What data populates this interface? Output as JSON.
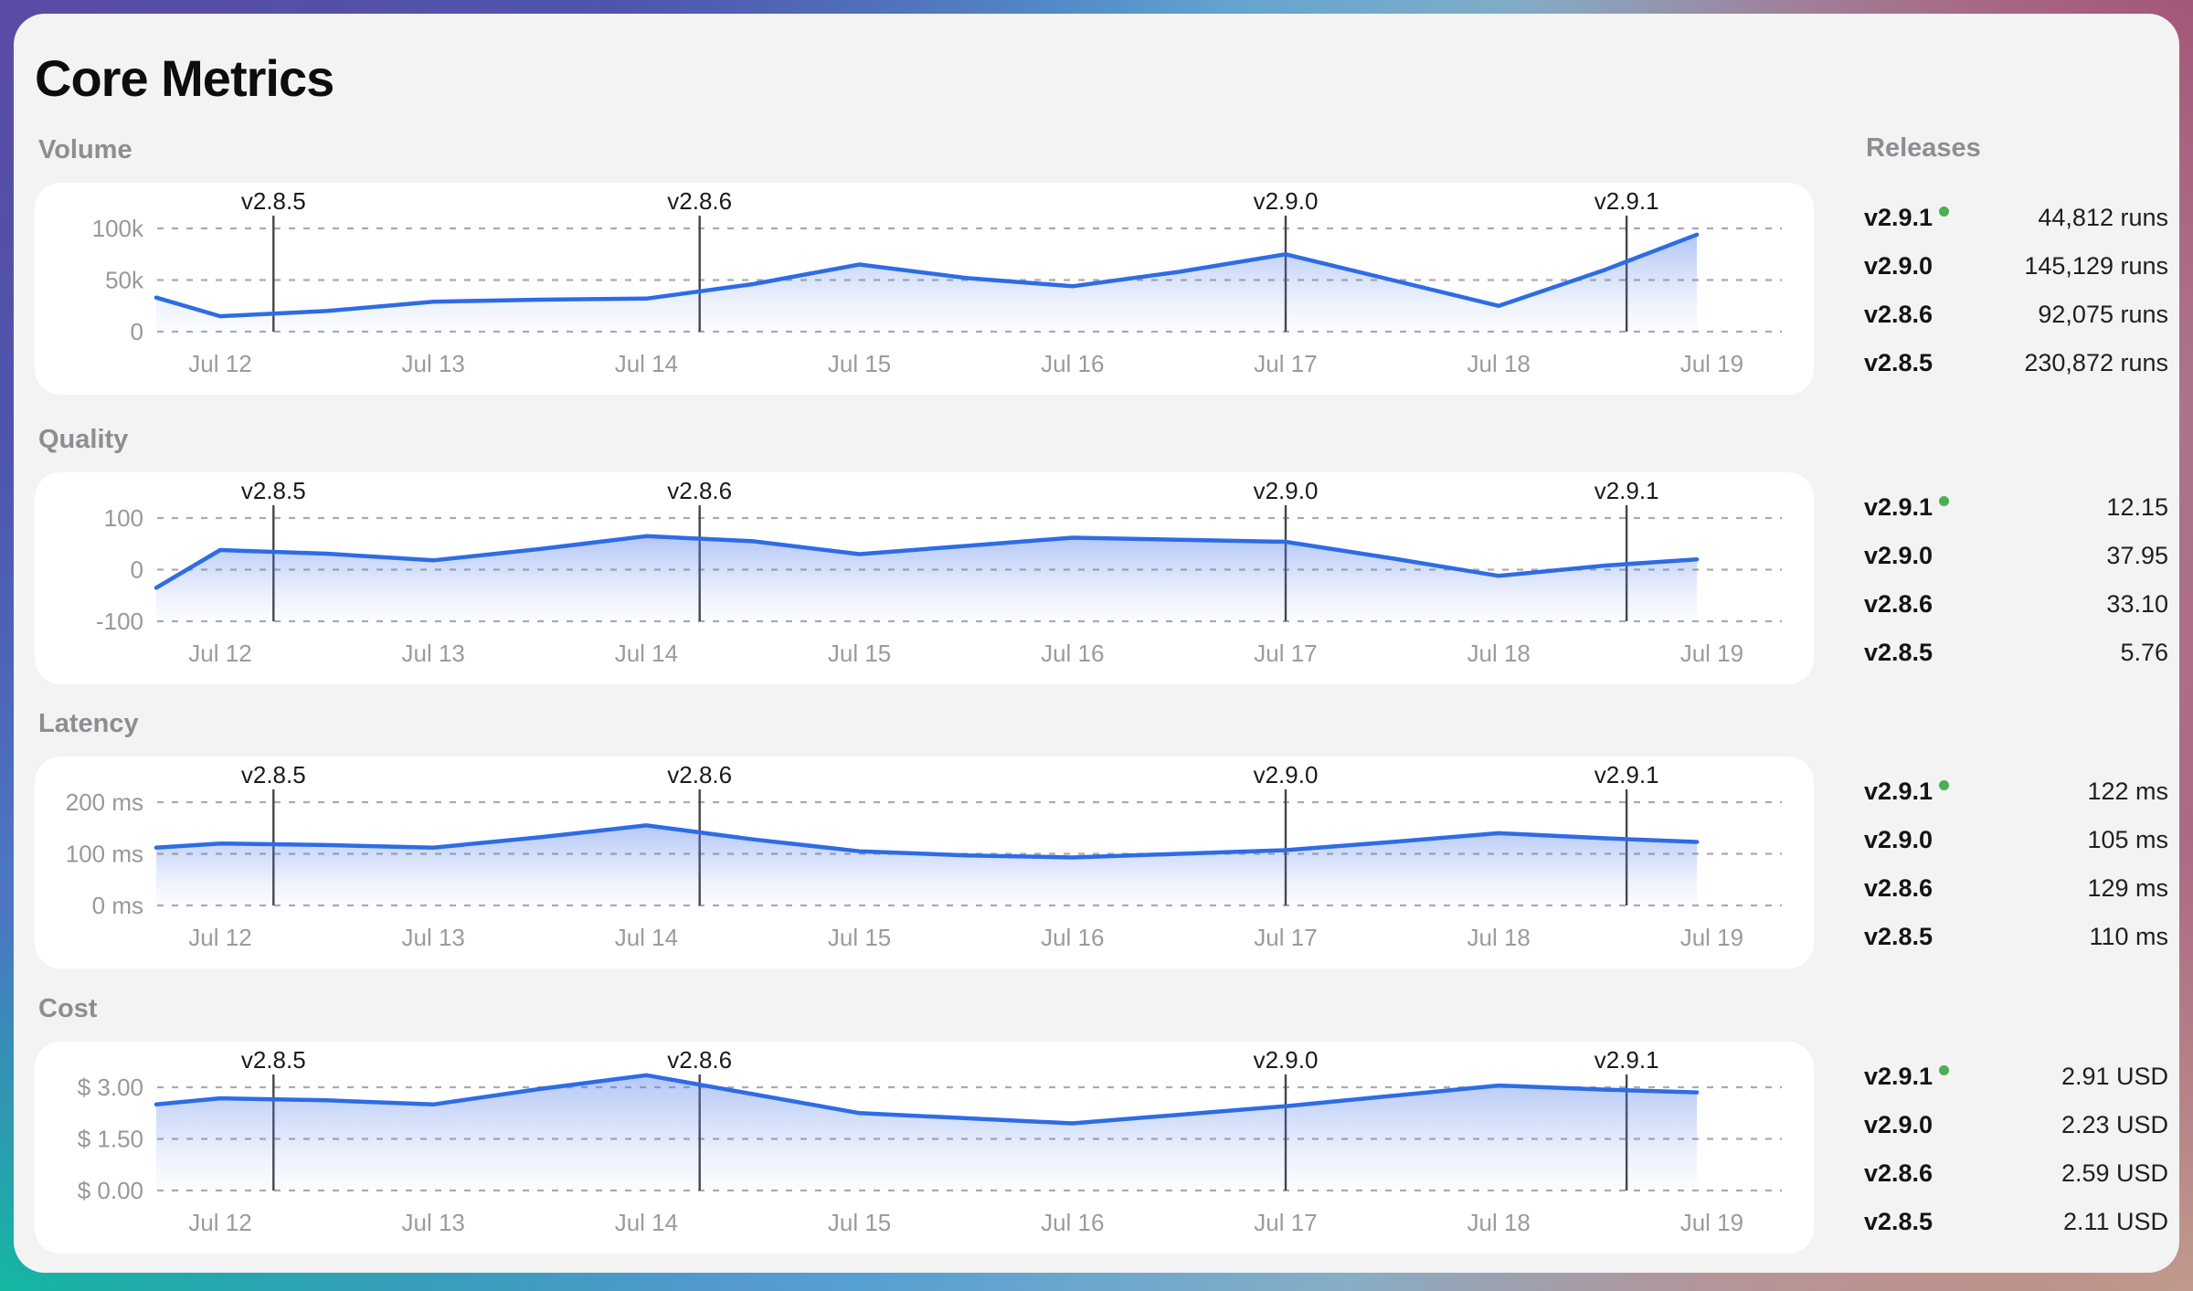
{
  "page": {
    "title": "Core Metrics"
  },
  "releases_panel": {
    "heading": "Releases",
    "current_release": "v2.9.1"
  },
  "x_axis": {
    "labels": [
      "Jul 12",
      "Jul 13",
      "Jul 14",
      "Jul 15",
      "Jul 16",
      "Jul 17",
      "Jul 18",
      "Jul 19"
    ]
  },
  "release_markers": [
    {
      "version": "v2.8.5",
      "day": 0.25
    },
    {
      "version": "v2.8.6",
      "day": 2.25
    },
    {
      "version": "v2.9.0",
      "day": 5.0
    },
    {
      "version": "v2.9.1",
      "day": 6.6
    }
  ],
  "colors": {
    "line": "#2e6ce5",
    "area": "#4d7ce9",
    "grid": "#ababaf",
    "marker_line": "#454548",
    "green_dot": "#4caf50"
  },
  "chart_data": [
    {
      "type": "area",
      "title": "Volume",
      "unit": "runs",
      "y_ticks": [
        "100k",
        "50k",
        "0"
      ],
      "y_range": [
        0,
        100000
      ],
      "x_days": [
        -0.3,
        0,
        0.5,
        1,
        1.5,
        2,
        2.5,
        3,
        3.5,
        4,
        4.5,
        5,
        5.5,
        6,
        6.5,
        6.93
      ],
      "values": [
        33000,
        15000,
        20000,
        29000,
        31000,
        32000,
        46000,
        65000,
        52000,
        44000,
        58000,
        75000,
        50000,
        25000,
        60000,
        94000
      ],
      "release_stats": [
        {
          "version": "v2.9.1",
          "value": "44,812 runs",
          "current": true
        },
        {
          "version": "v2.9.0",
          "value": "145,129 runs",
          "current": false
        },
        {
          "version": "v2.8.6",
          "value": "92,075 runs",
          "current": false
        },
        {
          "version": "v2.8.5",
          "value": "230,872 runs",
          "current": false
        }
      ]
    },
    {
      "type": "area",
      "title": "Quality",
      "unit": "",
      "y_ticks": [
        "100",
        "0",
        "-100"
      ],
      "y_range": [
        -100,
        100
      ],
      "x_days": [
        -0.3,
        0,
        0.5,
        1,
        1.5,
        2,
        2.5,
        3,
        3.5,
        4,
        4.5,
        5,
        5.5,
        6,
        6.5,
        6.93
      ],
      "values": [
        -35,
        38,
        31,
        18,
        40,
        65,
        55,
        30,
        46,
        62,
        58,
        54,
        22,
        -12,
        8,
        20
      ],
      "release_stats": [
        {
          "version": "v2.9.1",
          "value": "12.15",
          "current": true
        },
        {
          "version": "v2.9.0",
          "value": "37.95",
          "current": false
        },
        {
          "version": "v2.8.6",
          "value": "33.10",
          "current": false
        },
        {
          "version": "v2.8.5",
          "value": "5.76",
          "current": false
        }
      ]
    },
    {
      "type": "area",
      "title": "Latency",
      "unit": "ms",
      "y_ticks": [
        "200 ms",
        "100 ms",
        "0 ms"
      ],
      "y_range": [
        0,
        200
      ],
      "x_days": [
        -0.3,
        0,
        0.5,
        1,
        1.5,
        2,
        2.5,
        3,
        3.5,
        4,
        4.5,
        5,
        5.5,
        6,
        6.5,
        6.93
      ],
      "values": [
        112,
        120,
        117,
        112,
        132,
        155,
        128,
        105,
        97,
        93,
        100,
        107,
        123,
        140,
        130,
        123
      ],
      "release_stats": [
        {
          "version": "v2.9.1",
          "value": "122 ms",
          "current": true
        },
        {
          "version": "v2.9.0",
          "value": "105 ms",
          "current": false
        },
        {
          "version": "v2.8.6",
          "value": "129 ms",
          "current": false
        },
        {
          "version": "v2.8.5",
          "value": "110 ms",
          "current": false
        }
      ]
    },
    {
      "type": "area",
      "title": "Cost",
      "unit": "USD",
      "y_ticks": [
        "$ 3.00",
        "$ 1.50",
        "$ 0.00"
      ],
      "y_range": [
        0,
        3
      ],
      "x_days": [
        -0.3,
        0,
        0.5,
        1,
        1.5,
        2,
        2.5,
        3,
        3.5,
        4,
        4.5,
        5,
        5.5,
        6,
        6.5,
        6.93
      ],
      "values": [
        2.5,
        2.68,
        2.62,
        2.5,
        2.95,
        3.35,
        2.8,
        2.25,
        2.1,
        1.95,
        2.2,
        2.45,
        2.75,
        3.05,
        2.93,
        2.85
      ],
      "release_stats": [
        {
          "version": "v2.9.1",
          "value": "2.91 USD",
          "current": true
        },
        {
          "version": "v2.9.0",
          "value": "2.23 USD",
          "current": false
        },
        {
          "version": "v2.8.6",
          "value": "2.59 USD",
          "current": false
        },
        {
          "version": "v2.8.5",
          "value": "2.11 USD",
          "current": false
        }
      ]
    }
  ]
}
